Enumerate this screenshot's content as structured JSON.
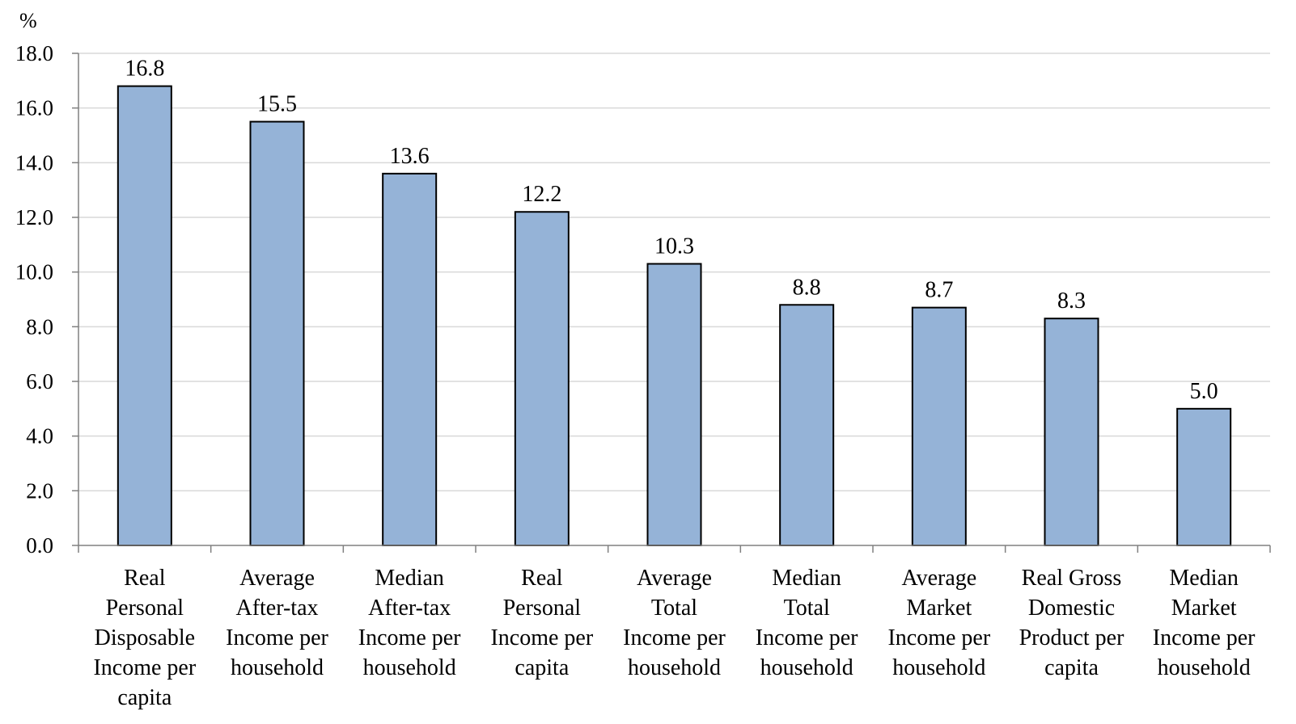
{
  "chart_data": {
    "type": "bar",
    "ylabel": "%",
    "categories": [
      [
        "Real",
        "Personal",
        "Disposable",
        "Income per",
        "capita"
      ],
      [
        "Average",
        "After-tax",
        "Income per",
        "household"
      ],
      [
        "Median",
        "After-tax",
        "Income per",
        "household"
      ],
      [
        "Real",
        "Personal",
        "Income per",
        "capita"
      ],
      [
        "Average",
        "Total",
        "Income per",
        "household"
      ],
      [
        "Median",
        "Total",
        "Income per",
        "household"
      ],
      [
        "Average",
        "Market",
        "Income per",
        "household"
      ],
      [
        "Real Gross",
        "Domestic",
        "Product per",
        "capita"
      ],
      [
        "Median",
        "Market",
        "Income per",
        "household"
      ]
    ],
    "values": [
      16.8,
      15.5,
      13.6,
      12.2,
      10.3,
      8.8,
      8.7,
      8.3,
      5.0
    ],
    "value_labels": [
      "16.8",
      "15.5",
      "13.6",
      "12.2",
      "10.3",
      "8.8",
      "8.7",
      "8.3",
      "5.0"
    ],
    "ylim": [
      0,
      18
    ],
    "yticks": [
      0,
      2,
      4,
      6,
      8,
      10,
      12,
      14,
      16,
      18
    ],
    "ytick_labels": [
      "0.0",
      "2.0",
      "4.0",
      "6.0",
      "8.0",
      "10.0",
      "12.0",
      "14.0",
      "16.0",
      "18.0"
    ],
    "grid": true,
    "legend": "none",
    "colors": {
      "bar_fill": "#95b3d7",
      "bar_stroke": "#000000",
      "grid": "#d9d9d9",
      "axis": "#808080"
    }
  }
}
